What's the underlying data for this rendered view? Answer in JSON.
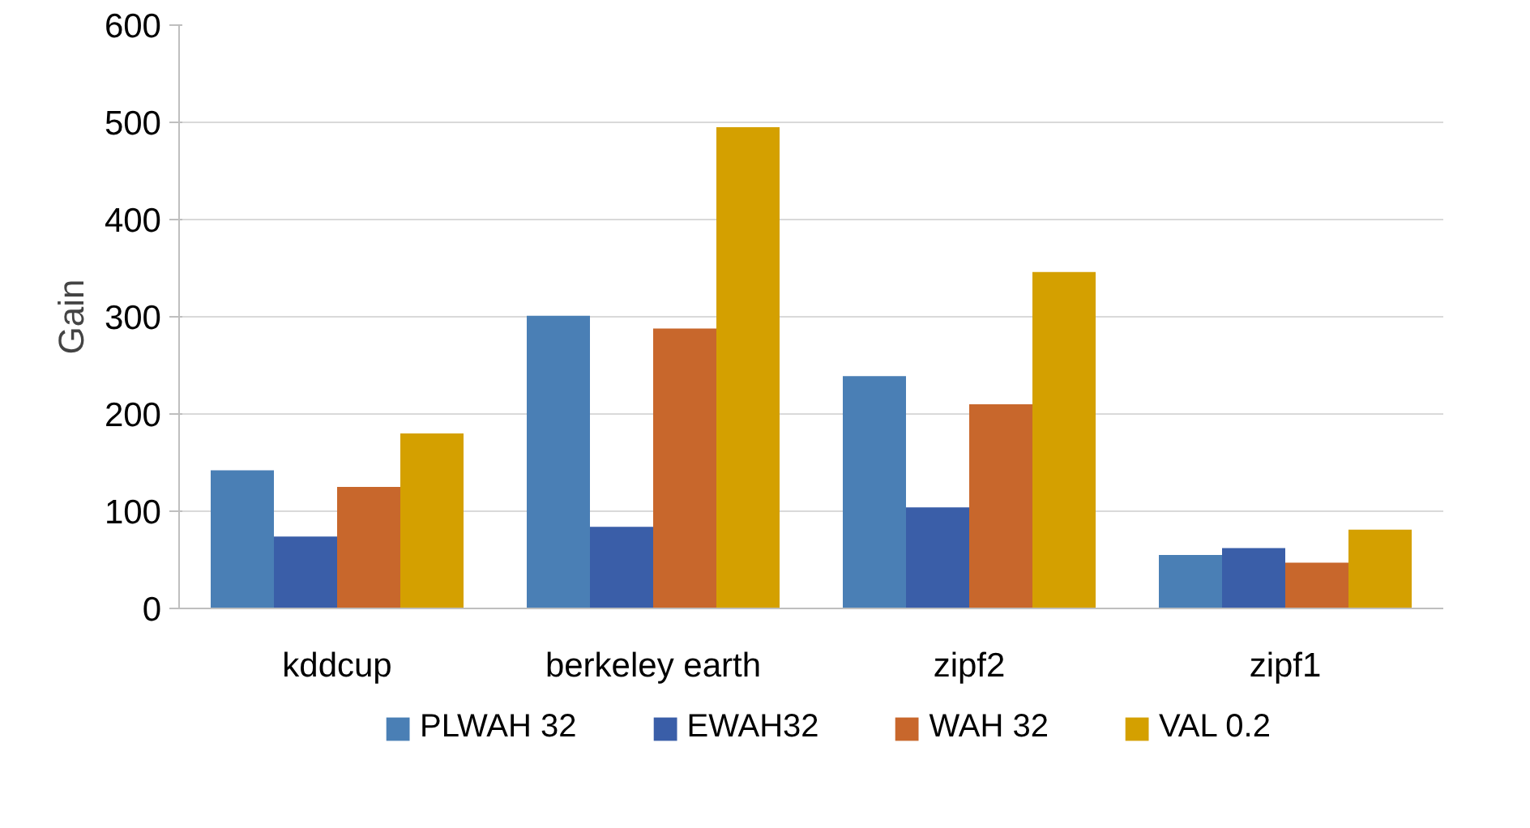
{
  "chart_data": {
    "type": "bar",
    "ylabel": "Gain",
    "categories": [
      "kddcup",
      "berkeley earth",
      "zipf2",
      "zipf1"
    ],
    "series": [
      {
        "name": "PLWAH 32",
        "color": "#4a7fb5",
        "values": [
          142,
          301,
          239,
          55
        ]
      },
      {
        "name": "EWAH32",
        "color": "#3a5ea8",
        "values": [
          74,
          84,
          104,
          62
        ]
      },
      {
        "name": "WAH 32",
        "color": "#c8672c",
        "values": [
          125,
          288,
          210,
          47
        ]
      },
      {
        "name": "VAL 0.2",
        "color": "#d4a000",
        "values": [
          180,
          495,
          346,
          81
        ]
      }
    ],
    "ylim": [
      0,
      600
    ],
    "yticks": [
      0,
      100,
      200,
      300,
      400,
      500,
      600
    ],
    "grid": "y",
    "legend": "bottom"
  }
}
